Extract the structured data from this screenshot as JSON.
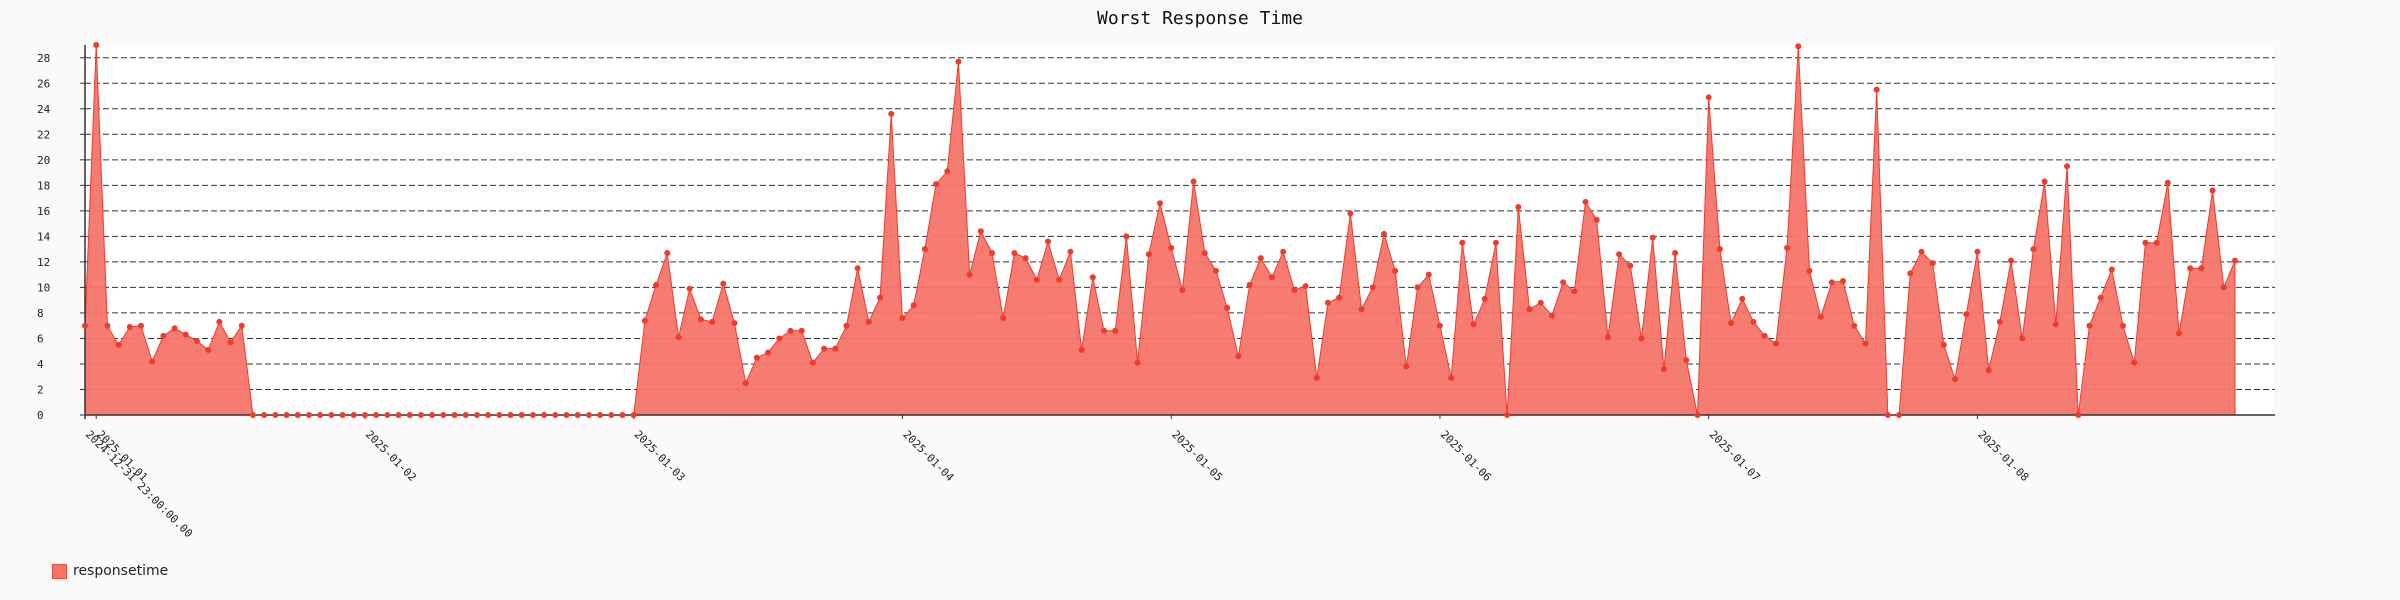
{
  "colors": {
    "series": "#f57468",
    "series_line": "#ef3b2c",
    "grid": "#333333",
    "background": "#fafafa",
    "plot_bg": "#ffffff"
  },
  "chart_data": {
    "type": "area",
    "title": "Worst Response Time",
    "xlabel": "",
    "ylabel": "",
    "ylim": [
      0,
      29
    ],
    "yticks": [
      0,
      2,
      4,
      6,
      8,
      10,
      12,
      14,
      16,
      18,
      20,
      22,
      24,
      26,
      28
    ],
    "grid": "horizontal dashed",
    "legend_placement": "bottom-left",
    "major_x_labels": [
      "2025-01-01",
      "2025-01-02",
      "2025-01-03",
      "2025-01-04",
      "2025-01-05",
      "2025-01-06",
      "2025-01-07",
      "2025-01-08"
    ],
    "first_x_label": "2024-12-31 23:00:00.00",
    "series": [
      {
        "name": "responsetime",
        "values": [
          7,
          29,
          7,
          5.5,
          6.9,
          7,
          4.2,
          6.2,
          6.8,
          6.3,
          5.8,
          5.1,
          7.3,
          5.7,
          7,
          0,
          0,
          0,
          0,
          0,
          0,
          0,
          0,
          0,
          0,
          0,
          0,
          0,
          0,
          0,
          0,
          0,
          0,
          0,
          0,
          0,
          0,
          0,
          0,
          0,
          0,
          0,
          0,
          0,
          0,
          0,
          0,
          0,
          0,
          0,
          7.4,
          10.2,
          12.7,
          6.1,
          9.9,
          7.5,
          7.3,
          10.3,
          7.2,
          2.5,
          4.5,
          4.9,
          6,
          6.6,
          6.6,
          4.1,
          5.2,
          5.2,
          7,
          11.5,
          7.3,
          9.2,
          23.6,
          7.6,
          8.6,
          13,
          18.1,
          19.1,
          27.7,
          11,
          14.4,
          12.7,
          7.6,
          12.7,
          12.3,
          10.6,
          13.6,
          10.6,
          12.8,
          5.1,
          10.8,
          6.6,
          6.6,
          14,
          4.1,
          12.6,
          16.6,
          13.1,
          9.8,
          18.3,
          12.7,
          11.3,
          8.4,
          4.6,
          10.2,
          12.3,
          10.8,
          12.8,
          9.8,
          10.1,
          2.9,
          8.8,
          9.2,
          15.8,
          8.3,
          10,
          14.2,
          11.3,
          3.8,
          10,
          11,
          7,
          2.9,
          13.5,
          7.1,
          9.1,
          13.5,
          0,
          16.3,
          8.3,
          8.8,
          7.8,
          10.4,
          9.7,
          16.7,
          15.3,
          6.1,
          12.6,
          11.7,
          6,
          13.9,
          3.6,
          12.7,
          4.3,
          0,
          24.9,
          13,
          7.2,
          9.1,
          7.3,
          6.2,
          5.6,
          13.1,
          28.9,
          11.3,
          7.7,
          10.4,
          10.5,
          7,
          5.6,
          25.5,
          0,
          0,
          11.1,
          12.8,
          11.9,
          5.5,
          2.8,
          7.9,
          12.8,
          3.5,
          7.3,
          12.1,
          6,
          13,
          18.3,
          7.1,
          19.5,
          0,
          7,
          9.2,
          11.4,
          7,
          4.1,
          13.5,
          13.5,
          18.2,
          6.4,
          11.5,
          11.5,
          17.6,
          10,
          12.1
        ]
      }
    ]
  }
}
